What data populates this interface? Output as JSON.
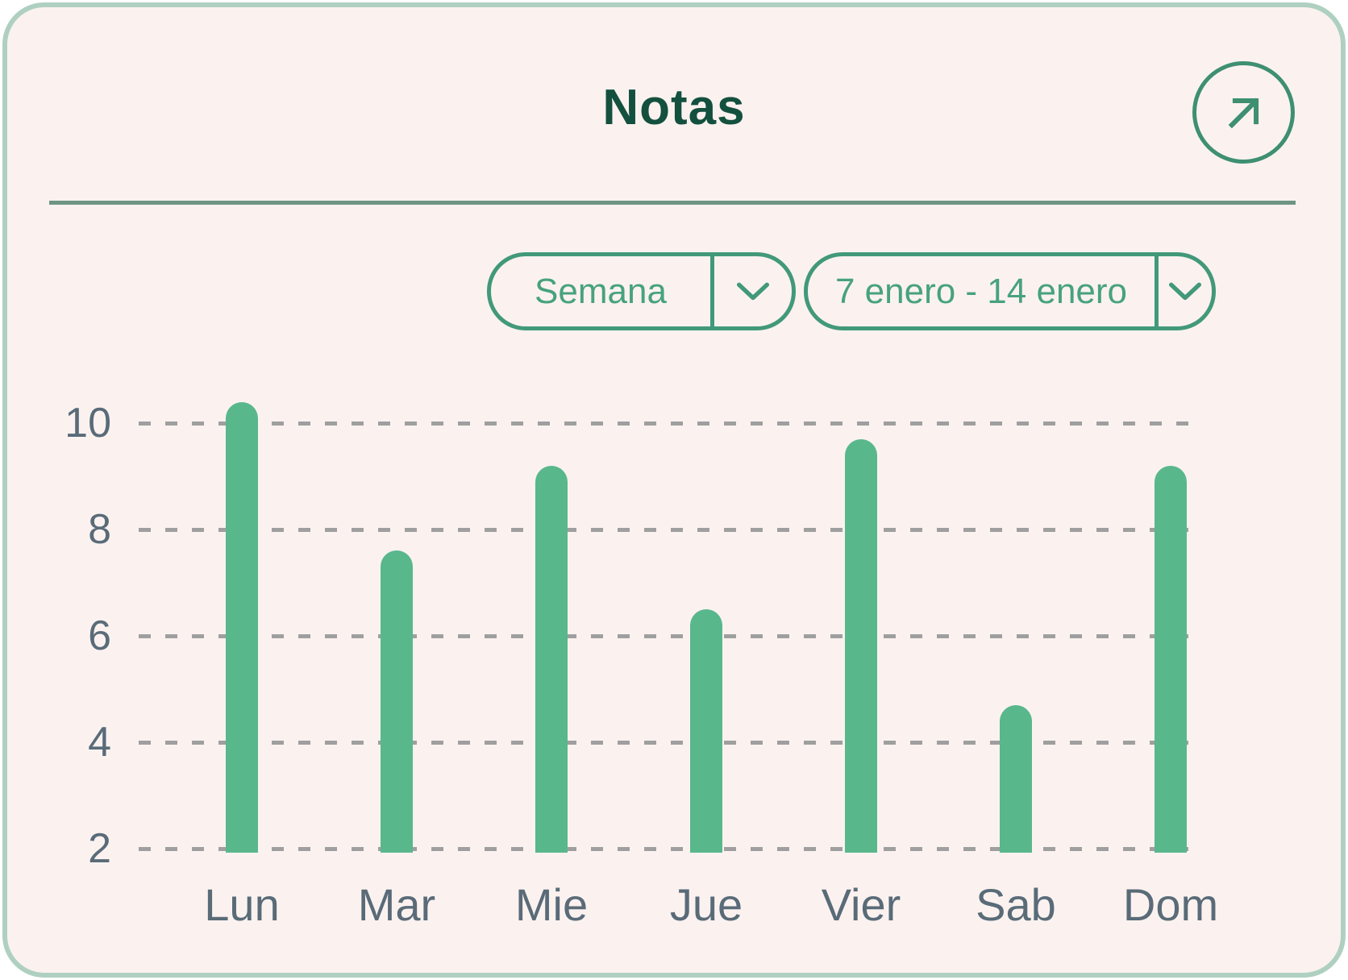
{
  "header": {
    "title": "Notas"
  },
  "controls": {
    "expand_icon": "arrow-up-right",
    "period_dropdown": {
      "value": "Semana",
      "icon": "chevron-down"
    },
    "date_range_dropdown": {
      "value": "7 enero - 14 enero",
      "icon": "chevron-down"
    }
  },
  "chart_data": {
    "type": "bar",
    "title": "Notas",
    "categories": [
      "Lun",
      "Mar",
      "Mie",
      "Jue",
      "Vier",
      "Sab",
      "Dom"
    ],
    "values": [
      10.4,
      7.6,
      9.2,
      6.5,
      9.7,
      4.7,
      9.2
    ],
    "xlabel": "",
    "ylabel": "",
    "ylim": [
      2,
      10.6
    ],
    "yticks": [
      10,
      8,
      6,
      4,
      2
    ],
    "grid": "horizontal-dashed",
    "legend": "none",
    "bar_color": "#59b78c"
  },
  "colors": {
    "card_background": "#fbf2f0",
    "card_border": "#afd0c1",
    "title_text": "#14503e",
    "accent_green": "#42997a",
    "divider": "#6d9582",
    "bar": "#59b78c",
    "gridline": "#9f9f9f",
    "axis_text": "#5a6b78"
  }
}
